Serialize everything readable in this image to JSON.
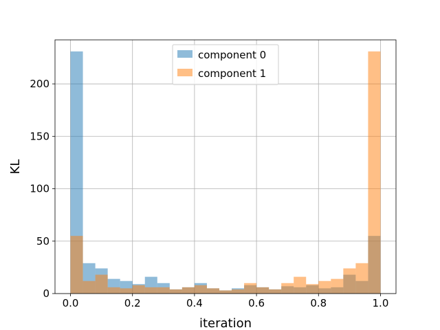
{
  "chart_data": {
    "type": "bar",
    "subtype": "overlapping-histogram",
    "xlabel": "iteration",
    "ylabel": "KL",
    "xlim": [
      -0.05,
      1.05
    ],
    "ylim": [
      0,
      242
    ],
    "grid": true,
    "legend_position": "top-center",
    "bin_edges": [
      0.0,
      0.04,
      0.08,
      0.12,
      0.16,
      0.2,
      0.24,
      0.28,
      0.32,
      0.36,
      0.4,
      0.44,
      0.48,
      0.52,
      0.56,
      0.6,
      0.64,
      0.68,
      0.72,
      0.76,
      0.8,
      0.84,
      0.88,
      0.92,
      0.96,
      1.0
    ],
    "series": [
      {
        "name": "component 0",
        "color": "#1f77b4",
        "values": [
          231,
          29,
          24,
          14,
          12,
          9,
          16,
          10,
          4,
          6,
          10,
          5,
          3,
          5,
          8,
          6,
          4,
          7,
          6,
          8,
          5,
          6,
          18,
          12,
          55
        ]
      },
      {
        "name": "component 1",
        "color": "#ff7f0e",
        "values": [
          55,
          12,
          18,
          6,
          5,
          8,
          6,
          6,
          4,
          6,
          8,
          5,
          3,
          4,
          10,
          6,
          4,
          10,
          16,
          9,
          12,
          14,
          24,
          29,
          231
        ]
      }
    ],
    "xticks": [
      "0.0",
      "0.2",
      "0.4",
      "0.6",
      "0.8",
      "1.0"
    ],
    "xtick_values": [
      0.0,
      0.2,
      0.4,
      0.6,
      0.8,
      1.0
    ],
    "yticks": [
      "0",
      "50",
      "100",
      "150",
      "200"
    ],
    "ytick_values": [
      0,
      50,
      100,
      150,
      200
    ]
  }
}
